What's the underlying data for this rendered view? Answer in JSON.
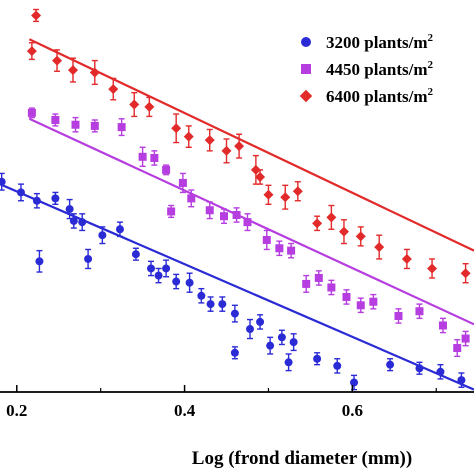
{
  "chart_data": {
    "type": "scatter",
    "xlabel": "Log (frond diameter  (mm))",
    "ylabel": "",
    "xlim": [
      0.18,
      0.745
    ],
    "ylim": [
      -1.25,
      2.05
    ],
    "xticks": [
      0.2,
      0.4,
      0.6
    ],
    "xtick_labels": [
      "0.2",
      "0.4",
      "0.6"
    ],
    "grid": false,
    "legend_position": "top-right",
    "legend": [
      {
        "name": "3200 plants/m",
        "sup": "2",
        "marker": "circle",
        "color": "#2b2bd6"
      },
      {
        "name": "4450 plants/m",
        "sup": "2",
        "marker": "square",
        "color": "#b63de0"
      },
      {
        "name": "6400 plants/m",
        "sup": "2",
        "marker": "diamond",
        "color": "#e32a2a"
      }
    ],
    "series": [
      {
        "name": "3200 plants/m2",
        "color": "#2b2bd6",
        "marker": "circle",
        "fit": {
          "x": [
            0.18,
            0.745
          ],
          "y": [
            0.5,
            -1.23
          ]
        },
        "points": [
          {
            "x": 0.182,
            "y": 0.52,
            "err": 0.07
          },
          {
            "x": 0.205,
            "y": 0.43,
            "err": 0.07
          },
          {
            "x": 0.224,
            "y": 0.36,
            "err": 0.06
          },
          {
            "x": 0.227,
            "y": -0.15,
            "err": 0.09
          },
          {
            "x": 0.246,
            "y": 0.38,
            "err": 0.05
          },
          {
            "x": 0.263,
            "y": 0.29,
            "err": 0.08
          },
          {
            "x": 0.268,
            "y": 0.19,
            "err": 0.06
          },
          {
            "x": 0.278,
            "y": 0.18,
            "err": 0.07
          },
          {
            "x": 0.285,
            "y": -0.13,
            "err": 0.08
          },
          {
            "x": 0.302,
            "y": 0.07,
            "err": 0.07
          },
          {
            "x": 0.323,
            "y": 0.12,
            "err": 0.06
          },
          {
            "x": 0.342,
            "y": -0.09,
            "err": 0.05
          },
          {
            "x": 0.36,
            "y": -0.21,
            "err": 0.06
          },
          {
            "x": 0.369,
            "y": -0.27,
            "err": 0.06
          },
          {
            "x": 0.378,
            "y": -0.21,
            "err": 0.07
          },
          {
            "x": 0.39,
            "y": -0.32,
            "err": 0.06
          },
          {
            "x": 0.406,
            "y": -0.33,
            "err": 0.08
          },
          {
            "x": 0.42,
            "y": -0.44,
            "err": 0.06
          },
          {
            "x": 0.431,
            "y": -0.51,
            "err": 0.06
          },
          {
            "x": 0.445,
            "y": -0.51,
            "err": 0.06
          },
          {
            "x": 0.46,
            "y": -0.59,
            "err": 0.07
          },
          {
            "x": 0.46,
            "y": -0.92,
            "err": 0.05
          },
          {
            "x": 0.478,
            "y": -0.72,
            "err": 0.08
          },
          {
            "x": 0.49,
            "y": -0.66,
            "err": 0.06
          },
          {
            "x": 0.502,
            "y": -0.86,
            "err": 0.07
          },
          {
            "x": 0.516,
            "y": -0.79,
            "err": 0.06
          },
          {
            "x": 0.524,
            "y": -1.0,
            "err": 0.07
          },
          {
            "x": 0.53,
            "y": -0.83,
            "err": 0.07
          },
          {
            "x": 0.558,
            "y": -0.97,
            "err": 0.05
          },
          {
            "x": 0.582,
            "y": -1.03,
            "err": 0.06
          },
          {
            "x": 0.602,
            "y": -1.17,
            "err": 0.06
          },
          {
            "x": 0.645,
            "y": -1.02,
            "err": 0.05
          },
          {
            "x": 0.68,
            "y": -1.05,
            "err": 0.05
          },
          {
            "x": 0.705,
            "y": -1.08,
            "err": 0.06
          },
          {
            "x": 0.73,
            "y": -1.15,
            "err": 0.06
          }
        ]
      },
      {
        "name": "4450 plants/m2",
        "color": "#b63de0",
        "marker": "square",
        "fit": {
          "x": [
            0.215,
            0.745
          ],
          "y": [
            1.05,
            -0.68
          ]
        },
        "points": [
          {
            "x": 0.218,
            "y": 1.1,
            "err": 0.04
          },
          {
            "x": 0.246,
            "y": 1.04,
            "err": 0.05
          },
          {
            "x": 0.27,
            "y": 1.0,
            "err": 0.06
          },
          {
            "x": 0.293,
            "y": 0.99,
            "err": 0.05
          },
          {
            "x": 0.325,
            "y": 0.98,
            "err": 0.07
          },
          {
            "x": 0.35,
            "y": 0.73,
            "err": 0.08
          },
          {
            "x": 0.364,
            "y": 0.72,
            "err": 0.06
          },
          {
            "x": 0.378,
            "y": 0.62,
            "err": 0.04
          },
          {
            "x": 0.384,
            "y": 0.27,
            "err": 0.05
          },
          {
            "x": 0.398,
            "y": 0.51,
            "err": 0.08
          },
          {
            "x": 0.408,
            "y": 0.38,
            "err": 0.07
          },
          {
            "x": 0.43,
            "y": 0.28,
            "err": 0.07
          },
          {
            "x": 0.447,
            "y": 0.23,
            "err": 0.06
          },
          {
            "x": 0.462,
            "y": 0.24,
            "err": 0.06
          },
          {
            "x": 0.475,
            "y": 0.18,
            "err": 0.07
          },
          {
            "x": 0.498,
            "y": 0.03,
            "err": 0.08
          },
          {
            "x": 0.513,
            "y": -0.04,
            "err": 0.06
          },
          {
            "x": 0.527,
            "y": -0.06,
            "err": 0.06
          },
          {
            "x": 0.545,
            "y": -0.34,
            "err": 0.07
          },
          {
            "x": 0.56,
            "y": -0.29,
            "err": 0.06
          },
          {
            "x": 0.575,
            "y": -0.37,
            "err": 0.06
          },
          {
            "x": 0.593,
            "y": -0.45,
            "err": 0.06
          },
          {
            "x": 0.61,
            "y": -0.52,
            "err": 0.06
          },
          {
            "x": 0.625,
            "y": -0.49,
            "err": 0.06
          },
          {
            "x": 0.655,
            "y": -0.61,
            "err": 0.06
          },
          {
            "x": 0.68,
            "y": -0.57,
            "err": 0.06
          },
          {
            "x": 0.708,
            "y": -0.69,
            "err": 0.06
          },
          {
            "x": 0.725,
            "y": -0.88,
            "err": 0.07
          },
          {
            "x": 0.735,
            "y": -0.8,
            "err": 0.06
          }
        ]
      },
      {
        "name": "6400 plants/m2",
        "color": "#e32a2a",
        "marker": "diamond",
        "fit": {
          "x": [
            0.215,
            0.745
          ],
          "y": [
            1.72,
            -0.06
          ]
        },
        "points": [
          {
            "x": 0.223,
            "y": 1.92,
            "err": 0.05
          },
          {
            "x": 0.218,
            "y": 1.62,
            "err": 0.07
          },
          {
            "x": 0.248,
            "y": 1.54,
            "err": 0.09
          },
          {
            "x": 0.267,
            "y": 1.46,
            "err": 0.1
          },
          {
            "x": 0.293,
            "y": 1.44,
            "err": 0.1
          },
          {
            "x": 0.315,
            "y": 1.3,
            "err": 0.09
          },
          {
            "x": 0.34,
            "y": 1.17,
            "err": 0.1
          },
          {
            "x": 0.358,
            "y": 1.15,
            "err": 0.08
          },
          {
            "x": 0.39,
            "y": 0.97,
            "err": 0.12
          },
          {
            "x": 0.405,
            "y": 0.9,
            "err": 0.09
          },
          {
            "x": 0.43,
            "y": 0.87,
            "err": 0.09
          },
          {
            "x": 0.45,
            "y": 0.78,
            "err": 0.1
          },
          {
            "x": 0.465,
            "y": 0.82,
            "err": 0.1
          },
          {
            "x": 0.485,
            "y": 0.62,
            "err": 0.12
          },
          {
            "x": 0.49,
            "y": 0.56,
            "err": 0.06
          },
          {
            "x": 0.5,
            "y": 0.41,
            "err": 0.08
          },
          {
            "x": 0.52,
            "y": 0.39,
            "err": 0.1
          },
          {
            "x": 0.535,
            "y": 0.44,
            "err": 0.08
          },
          {
            "x": 0.558,
            "y": 0.17,
            "err": 0.06
          },
          {
            "x": 0.575,
            "y": 0.22,
            "err": 0.1
          },
          {
            "x": 0.59,
            "y": 0.1,
            "err": 0.1
          },
          {
            "x": 0.61,
            "y": 0.06,
            "err": 0.08
          },
          {
            "x": 0.632,
            "y": -0.03,
            "err": 0.1
          },
          {
            "x": 0.665,
            "y": -0.13,
            "err": 0.08
          },
          {
            "x": 0.695,
            "y": -0.21,
            "err": 0.08
          },
          {
            "x": 0.735,
            "y": -0.25,
            "err": 0.08
          }
        ]
      }
    ]
  }
}
